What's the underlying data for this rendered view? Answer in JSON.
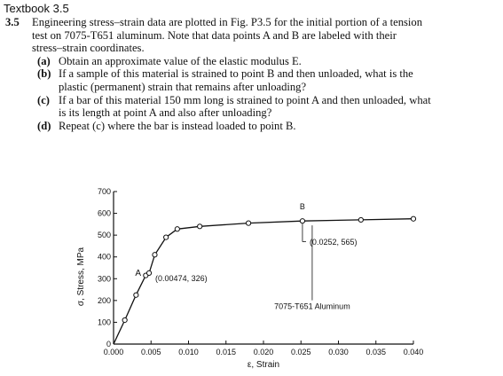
{
  "header": {
    "title": "Textbook 3.5"
  },
  "problem": {
    "number": "3.5",
    "intro_lines": [
      "Engineering stress–strain data are plotted in Fig. P3.5 for the initial portion of a tension",
      "test on 7075-T651 aluminum. Note that data points A and B are labeled with their",
      "stress–strain coordinates."
    ],
    "parts": [
      {
        "label": "(a)",
        "lines": [
          "Obtain an approximate value of the elastic modulus E."
        ]
      },
      {
        "label": "(b)",
        "lines": [
          "If a sample of this material is strained to point B and then unloaded, what is the",
          "plastic (permanent) strain that remains after unloading?"
        ]
      },
      {
        "label": "(c)",
        "lines": [
          "If a bar of this material 150 mm long is strained to point A and then unloaded, what",
          "is its length at point A and also after unloading?"
        ]
      },
      {
        "label": "(d)",
        "lines": [
          "Repeat (c) where the bar is instead loaded to point B."
        ]
      }
    ]
  },
  "chart_data": {
    "type": "line",
    "xlabel": "ε, Strain",
    "ylabel": "σ, Stress, MPa",
    "xlim": [
      0,
      0.04
    ],
    "ylim": [
      0,
      700
    ],
    "x_ticks": [
      "0.000",
      "0.005",
      "0.010",
      "0.015",
      "0.020",
      "0.025",
      "0.030",
      "0.035",
      "0.040"
    ],
    "y_ticks": [
      "0",
      "100",
      "200",
      "300",
      "400",
      "500",
      "600",
      "700"
    ],
    "grid": false,
    "series": [
      {
        "name": "7075-T651 Aluminum",
        "x": [
          0,
          0.0015,
          0.003,
          0.0043,
          0.00474,
          0.0055,
          0.007,
          0.0085,
          0.0115,
          0.018,
          0.0252,
          0.033,
          0.04
        ],
        "y": [
          0,
          110,
          225,
          315,
          326,
          410,
          490,
          528,
          540,
          555,
          565,
          570,
          575
        ]
      }
    ],
    "annotations": [
      {
        "id": "A",
        "label": "A",
        "text": "(0.00474, 326)",
        "x": 0.00474,
        "y": 326
      },
      {
        "id": "B",
        "label": "B",
        "text": "(0.0252, 565)",
        "x": 0.0252,
        "y": 565
      }
    ],
    "legend_text": "7075-T651 Aluminum"
  }
}
